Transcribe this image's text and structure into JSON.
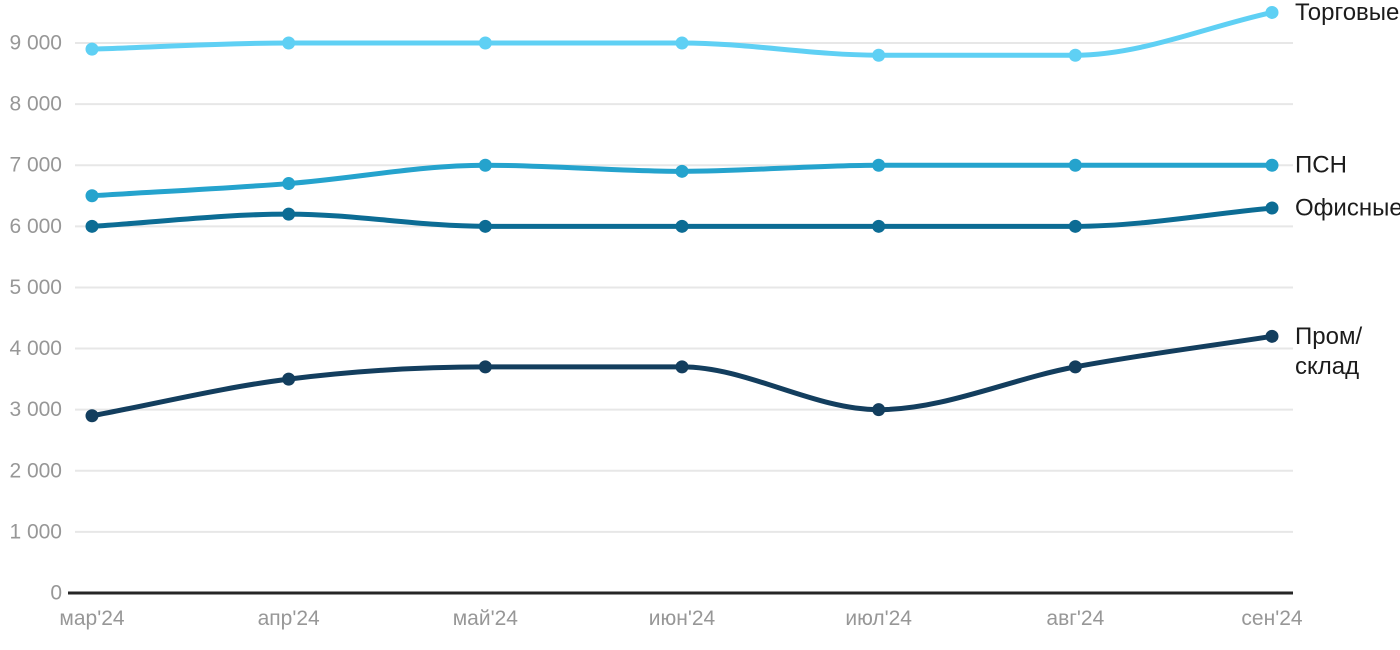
{
  "chart_data": {
    "type": "line",
    "title": "",
    "xlabel": "",
    "ylabel": "",
    "grid": true,
    "legend_position": "right-of-line-ends",
    "x_categories": [
      "мар'24",
      "апр'24",
      "май'24",
      "июн'24",
      "июл'24",
      "авг'24",
      "сен'24"
    ],
    "y_axis": {
      "min": 0,
      "max": 9000,
      "tick_step": 1000,
      "ticks": [
        {
          "value": 0,
          "label": "0"
        },
        {
          "value": 1000,
          "label": "1 000"
        },
        {
          "value": 2000,
          "label": "2 000"
        },
        {
          "value": 3000,
          "label": "3 000"
        },
        {
          "value": 4000,
          "label": "4 000"
        },
        {
          "value": 5000,
          "label": "5 000"
        },
        {
          "value": 6000,
          "label": "6 000"
        },
        {
          "value": 7000,
          "label": "7 000"
        },
        {
          "value": 8000,
          "label": "8 000"
        },
        {
          "value": 9000,
          "label": "9 000"
        }
      ]
    },
    "series": [
      {
        "name": "Торговые",
        "legend_lines": [
          "Торговые"
        ],
        "color": "#5fd0f4",
        "values": [
          8900,
          9000,
          9000,
          9000,
          8800,
          8800,
          9500
        ]
      },
      {
        "name": "ПСН",
        "legend_lines": [
          "ПСН"
        ],
        "color": "#25a3cd",
        "values": [
          6500,
          6700,
          7000,
          6900,
          7000,
          7000,
          7000
        ]
      },
      {
        "name": "Офисные",
        "legend_lines": [
          "Офисные"
        ],
        "color": "#0c6c94",
        "values": [
          6000,
          6200,
          6000,
          6000,
          6000,
          6000,
          6300
        ]
      },
      {
        "name": "Пром/склад",
        "legend_lines": [
          "Пром/",
          "склад"
        ],
        "color": "#133e5e",
        "values": [
          2900,
          3500,
          3700,
          3700,
          3000,
          3700,
          4200
        ]
      }
    ],
    "colors": {
      "gridline": "#e7e7e7",
      "axis_line": "#262626",
      "tick_label": "#979797",
      "legend_label": "#1c1c1c",
      "background": "#ffffff"
    }
  }
}
